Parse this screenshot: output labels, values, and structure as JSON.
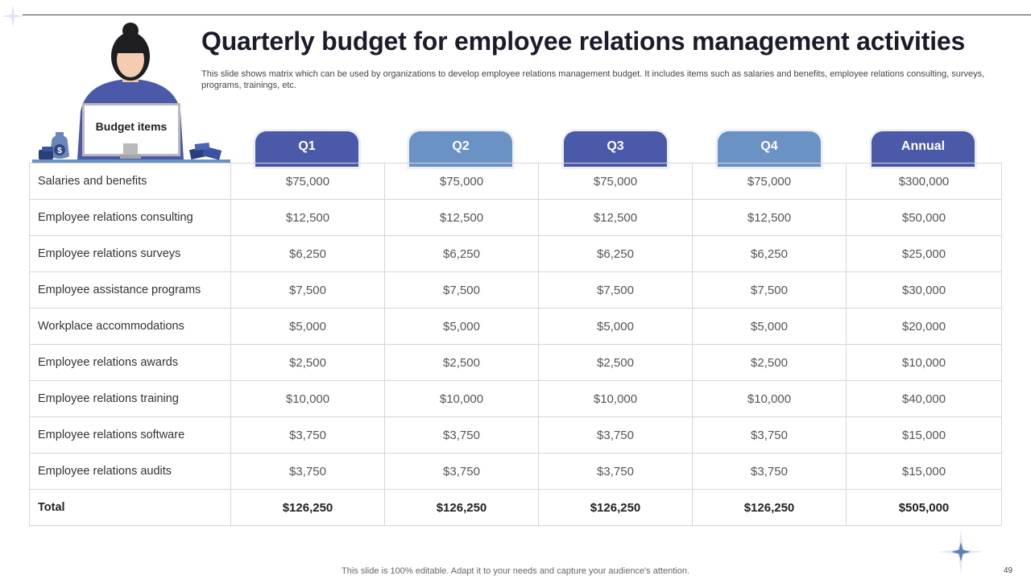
{
  "slide": {
    "title": "Quarterly budget for employee relations management activities",
    "subtitle": "This slide shows matrix which can be used by organizations to develop employee relations management budget. It includes items such as salaries and benefits, employee relations consulting, surveys, programs, trainings, etc.",
    "footer": "This slide is 100% editable. Adapt it to your needs and capture your audience's attention.",
    "page_number": "49"
  },
  "illustration": {
    "monitor_label": "Budget items",
    "money_bag_symbol": "$"
  },
  "colors": {
    "header_dark": "#4a59a8",
    "header_light": "#6b92c4",
    "accent_star": "#5a7fb8"
  },
  "table": {
    "columns": [
      "Q1",
      "Q2",
      "Q3",
      "Q4",
      "Annual"
    ],
    "rows": [
      {
        "item": "Salaries and benefits",
        "values": [
          "$75,000",
          "$75,000",
          "$75,000",
          "$75,000",
          "$300,000"
        ]
      },
      {
        "item": "Employee relations consulting",
        "values": [
          "$12,500",
          "$12,500",
          "$12,500",
          "$12,500",
          "$50,000"
        ]
      },
      {
        "item": "Employee relations surveys",
        "values": [
          "$6,250",
          "$6,250",
          "$6,250",
          "$6,250",
          "$25,000"
        ]
      },
      {
        "item": "Employee assistance programs",
        "values": [
          "$7,500",
          "$7,500",
          "$7,500",
          "$7,500",
          "$30,000"
        ]
      },
      {
        "item": "Workplace accommodations",
        "values": [
          "$5,000",
          "$5,000",
          "$5,000",
          "$5,000",
          "$20,000"
        ]
      },
      {
        "item": "Employee relations awards",
        "values": [
          "$2,500",
          "$2,500",
          "$2,500",
          "$2,500",
          "$10,000"
        ]
      },
      {
        "item": "Employee relations training",
        "values": [
          "$10,000",
          "$10,000",
          "$10,000",
          "$10,000",
          "$40,000"
        ]
      },
      {
        "item": "Employee relations software",
        "values": [
          "$3,750",
          "$3,750",
          "$3,750",
          "$3,750",
          "$15,000"
        ]
      },
      {
        "item": "Employee relations audits",
        "values": [
          "$3,750",
          "$3,750",
          "$3,750",
          "$3,750",
          "$15,000"
        ]
      }
    ],
    "total": {
      "item": "Total",
      "values": [
        "$126,250",
        "$126,250",
        "$126,250",
        "$126,250",
        "$505,000"
      ]
    }
  }
}
